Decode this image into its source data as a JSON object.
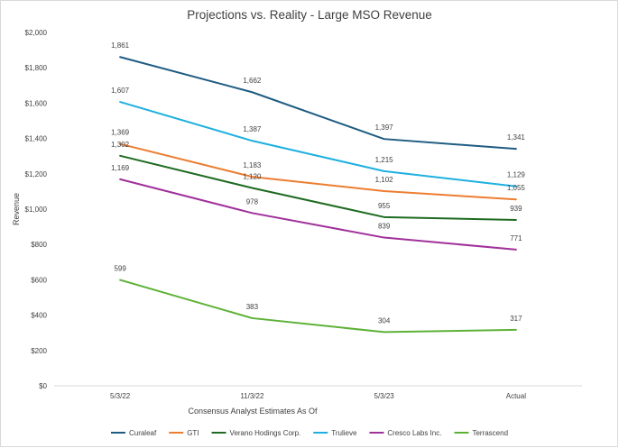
{
  "chart_data": {
    "type": "line",
    "title": "Projections vs. Reality - Large MSO Revenue",
    "xlabel": "Consensus Analyst Estimates As Of",
    "ylabel": "Revenue",
    "categories": [
      "5/3/22",
      "11/3/22",
      "5/3/23",
      "Actual"
    ],
    "ylim": [
      0,
      2000
    ],
    "yticks": [
      {
        "value": 0,
        "label": "$0"
      },
      {
        "value": 200,
        "label": "$200"
      },
      {
        "value": 400,
        "label": "$400"
      },
      {
        "value": 600,
        "label": "$600"
      },
      {
        "value": 800,
        "label": "$800"
      },
      {
        "value": 1000,
        "label": "$1,000"
      },
      {
        "value": 1200,
        "label": "$1,200"
      },
      {
        "value": 1400,
        "label": "$1,400"
      },
      {
        "value": 1600,
        "label": "$1,600"
      },
      {
        "value": 1800,
        "label": "$1,800"
      },
      {
        "value": 2000,
        "label": "$2,000"
      }
    ],
    "grid": false,
    "legend_position": "bottom",
    "series": [
      {
        "name": "Curaleaf",
        "color": "#1f5c82",
        "values": [
          1861,
          1662,
          1397,
          1341
        ],
        "labels": [
          "1,861",
          "1,662",
          "1,397",
          "1,341"
        ]
      },
      {
        "name": "GTI",
        "color": "#ed7d31",
        "values": [
          1369,
          1183,
          1102,
          1055
        ],
        "labels": [
          "1,369",
          "1,183",
          "1,102",
          "1,055"
        ]
      },
      {
        "name": "Verano Hodings Corp.",
        "color": "#1e6b21",
        "values": [
          1302,
          1120,
          955,
          939
        ],
        "labels": [
          "1,302",
          "1,120",
          "955",
          "939"
        ]
      },
      {
        "name": "Trulieve",
        "color": "#1eb0e0",
        "values": [
          1607,
          1387,
          1215,
          1129
        ],
        "labels": [
          "1,607",
          "1,387",
          "1,215",
          "1,129"
        ]
      },
      {
        "name": "Cresco Labs Inc.",
        "color": "#a0309a",
        "values": [
          1169,
          978,
          839,
          771
        ],
        "labels": [
          "1,169",
          "978",
          "839",
          "771"
        ]
      },
      {
        "name": "Terrascend",
        "color": "#5db136",
        "values": [
          599,
          383,
          304,
          317
        ],
        "labels": [
          "599",
          "383",
          "304",
          "317"
        ]
      }
    ]
  }
}
